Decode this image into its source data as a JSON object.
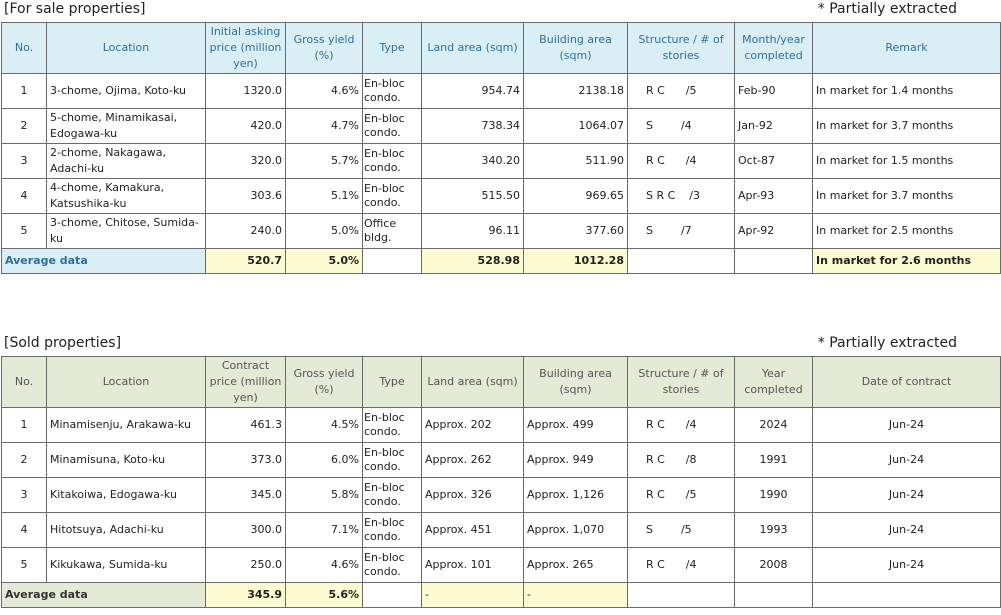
{
  "for_sale": {
    "title": "[For sale properties]",
    "note": "* Partially extracted",
    "headers": [
      "No.",
      "Location",
      "Initial asking price (million yen)",
      "Gross yield (%)",
      "Type",
      "Land area (sqm)",
      "Building area (sqm)",
      "Structure / # of stories",
      "Month/year completed",
      "Remark"
    ],
    "rows": [
      {
        "no": "1",
        "location": "3-chome, Ojima, Koto-ku",
        "price": "1320.0",
        "yield": "4.6%",
        "type": "En-bloc condo.",
        "land": "954.74",
        "building": "2138.18",
        "structure": "R C      /5",
        "completed": "Feb-90",
        "remark": "In market for 1.4 months"
      },
      {
        "no": "2",
        "location": "5-chome, Minamikasai, Edogawa-ku",
        "price": "420.0",
        "yield": "4.7%",
        "type": "En-bloc condo.",
        "land": "738.34",
        "building": "1064.07",
        "structure": "S        /4",
        "completed": "Jan-92",
        "remark": "In market for 3.7 months"
      },
      {
        "no": "3",
        "location": "2-chome, Nakagawa, Adachi-ku",
        "price": "320.0",
        "yield": "5.7%",
        "type": "En-bloc condo.",
        "land": "340.20",
        "building": "511.90",
        "structure": "R C      /4",
        "completed": "Oct-87",
        "remark": "In market for 1.5 months"
      },
      {
        "no": "4",
        "location": "4-chome, Kamakura, Katsushika-ku",
        "price": "303.6",
        "yield": "5.1%",
        "type": "En-bloc condo.",
        "land": "515.50",
        "building": "969.65",
        "structure": "S R C    /3",
        "completed": "Apr-93",
        "remark": "In market for 3.7 months"
      },
      {
        "no": "5",
        "location": "3-chome, Chitose, Sumida-ku",
        "price": "240.0",
        "yield": "5.0%",
        "type": "Office bldg.",
        "land": "96.11",
        "building": "377.60",
        "structure": "S        /7",
        "completed": "Apr-92",
        "remark": "In market for 2.5 months"
      }
    ],
    "average": {
      "label": "Average data",
      "price": "520.7",
      "yield": "5.0%",
      "land": "528.98",
      "building": "1012.28",
      "remark": "In market for 2.6 months"
    }
  },
  "sold": {
    "title": "[Sold properties]",
    "note": "* Partially extracted",
    "headers": [
      "No.",
      "Location",
      "Contract price (million yen)",
      "Gross yield (%)",
      "Type",
      "Land area (sqm)",
      "Building area (sqm)",
      "Structure / # of stories",
      "Year completed",
      "Date of contract"
    ],
    "rows": [
      {
        "no": "1",
        "location": "Minamisenju, Arakawa-ku",
        "price": "461.3",
        "yield": "4.5%",
        "type": "En-bloc condo.",
        "land": "Approx. 202",
        "building": "Approx. 499",
        "structure": "R C      /4",
        "completed": "2024",
        "date": "Jun-24"
      },
      {
        "no": "2",
        "location": "Minamisuna, Koto-ku",
        "price": "373.0",
        "yield": "6.0%",
        "type": "En-bloc condo.",
        "land": "Approx. 262",
        "building": "Approx. 949",
        "structure": "R C      /8",
        "completed": "1991",
        "date": "Jun-24"
      },
      {
        "no": "3",
        "location": "Kitakoiwa, Edogawa-ku",
        "price": "345.0",
        "yield": "5.8%",
        "type": "En-bloc condo.",
        "land": "Approx. 326",
        "building": "Approx. 1,126",
        "structure": "R C      /5",
        "completed": "1990",
        "date": "Jun-24"
      },
      {
        "no": "4",
        "location": "Hitotsuya, Adachi-ku",
        "price": "300.0",
        "yield": "7.1%",
        "type": "En-bloc condo.",
        "land": "Approx. 451",
        "building": "Approx. 1,070",
        "structure": "S        /5",
        "completed": "1993",
        "date": "Jun-24"
      },
      {
        "no": "5",
        "location": "Kikukawa, Sumida-ku",
        "price": "250.0",
        "yield": "4.6%",
        "type": "En-bloc condo.",
        "land": "Approx. 101",
        "building": "Approx. 265",
        "structure": "R C      /4",
        "completed": "2008",
        "date": "Jun-24"
      }
    ],
    "average": {
      "label": "Average data",
      "price": "345.9",
      "yield": "5.6%",
      "land": "-",
      "building": "-"
    }
  }
}
